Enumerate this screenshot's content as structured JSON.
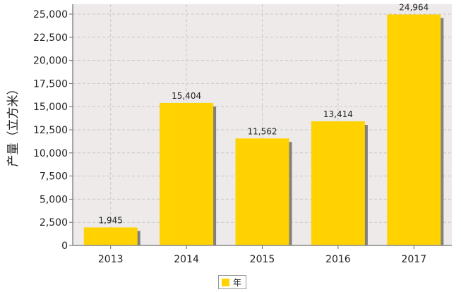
{
  "chart_data": {
    "type": "bar",
    "categories": [
      "2013",
      "2014",
      "2015",
      "2016",
      "2017"
    ],
    "series": [
      {
        "name": "年",
        "values": [
          1945,
          15404,
          11562,
          13414,
          24964
        ]
      }
    ],
    "data_labels": [
      "1,945",
      "15,404",
      "11,562",
      "13,414",
      "24,964"
    ],
    "ylabel": "产量（立方米）",
    "ylim": [
      0,
      25000
    ],
    "yticks": [
      {
        "value": 0,
        "label": "0"
      },
      {
        "value": 2500,
        "label": "2,500"
      },
      {
        "value": 5000,
        "label": "5,000"
      },
      {
        "value": 7500,
        "label": "7,500"
      },
      {
        "value": 10000,
        "label": "10,000"
      },
      {
        "value": 12500,
        "label": "12,500"
      },
      {
        "value": 15000,
        "label": "15,000"
      },
      {
        "value": 17500,
        "label": "17,500"
      },
      {
        "value": 20000,
        "label": "20,000"
      },
      {
        "value": 22500,
        "label": "22,500"
      },
      {
        "value": 25000,
        "label": "25,000"
      }
    ],
    "grid": true,
    "legend_position": "bottom",
    "colors": {
      "bar": "#FFD200",
      "shadow": "#808080",
      "plot_bg": "#EDEAE9",
      "grid": "#C8C8C8"
    }
  }
}
